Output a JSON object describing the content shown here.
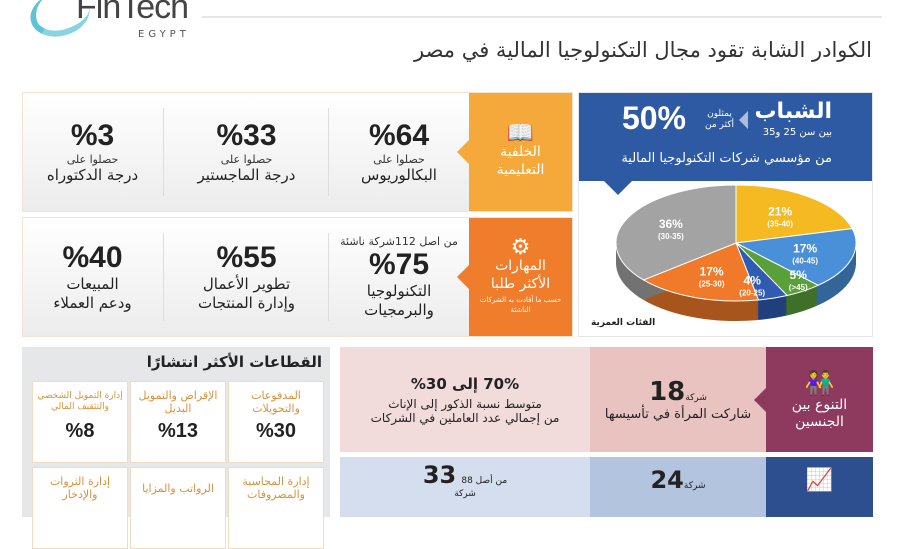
{
  "logo": {
    "text": "FinTech",
    "sub": "EGYPT"
  },
  "title": "الكوادر الشابة تقود مجال التكنولوجيا المالية في مصر",
  "education": {
    "label": "الخلفية التعليمية",
    "icon": "book-icon",
    "color": "#f5a93a",
    "items": [
      {
        "value": "%64",
        "pre": "حصلوا على",
        "text": "البكالوريوس"
      },
      {
        "value": "%33",
        "pre": "حصلوا على",
        "text": "درجة الماجستير"
      },
      {
        "value": "%3",
        "pre": "حصلوا على",
        "text": "درجة الدكتوراه"
      }
    ]
  },
  "skills": {
    "label": "المهارات الأكثر طلبا",
    "note": "حسب ما أفادت به الشركات الناشئة",
    "icon": "gear-person-icon",
    "color": "#ef7d2c",
    "top_note": "من اصل 112شركة ناشئة",
    "items": [
      {
        "value": "%75",
        "text1": "التكنولوجيا",
        "text2": "والبرمجيات"
      },
      {
        "value": "%55",
        "text1": "تطوير الأعمال",
        "text2": "وإدارة المنتجات"
      },
      {
        "value": "%40",
        "text1": "المبيعات",
        "text2": "ودعم العملاء"
      }
    ]
  },
  "youth": {
    "title": "الشباب",
    "range": "بين سن 25 و35",
    "pre1": "يمثلون",
    "pre2": "أكثر من",
    "value": "50%",
    "sub": "من مؤسسي شركات التكنولوجيا المالية",
    "color": "#2d5aa2"
  },
  "chart_data": {
    "type": "pie",
    "title": "الفئات العمرية",
    "categories": [
      "(35-40)",
      "(40-45)",
      "(>45)",
      "(20-25)",
      "(25-30)",
      "(30-35)"
    ],
    "values": [
      21,
      17,
      5,
      4,
      17,
      36
    ],
    "labels": [
      "21%",
      "17%",
      "5%",
      "4%",
      "17%",
      "36%"
    ],
    "colors": [
      "#f5b922",
      "#4a90d9",
      "#5aa03a",
      "#2f5cb0",
      "#f07a2a",
      "#a3a3a3"
    ]
  },
  "sectors": {
    "title": "القطاعات الأكثر انتشارًا",
    "items": [
      {
        "name": "المدفوعات والتحويلات",
        "value": "%30"
      },
      {
        "name": "الإقراض والتمويل البديل",
        "value": "%13"
      },
      {
        "name": "إدارة التمويل الشخصي والتثقيف المالي",
        "value": "%8"
      },
      {
        "name": "إدارة المحاسبة والمصروفات",
        "value": ""
      },
      {
        "name": "الرواتب والمزايا",
        "value": ""
      },
      {
        "name": "إدارة الثروات والإدخار",
        "value": ""
      }
    ]
  },
  "gender": {
    "label": "التنوع بين الجنسين",
    "icon": "people-icon",
    "color": "#8e3a5e",
    "count": "18",
    "unit": "شركة",
    "count_text": "شاركت المرأة في تأسيسها",
    "ratio": "70% إلى 30%",
    "ratio_text1": "متوسط نسبة الذكور إلى الإناث",
    "ratio_text2": "من إجمالي عدد العاملين في الشركات"
  },
  "growth": {
    "icon": "growth-chart-icon",
    "color": "#2e4f8f",
    "count": "24",
    "unit": "شركة",
    "count2": "33",
    "pre2": "من أصل 88",
    "unit2": "شركة"
  }
}
